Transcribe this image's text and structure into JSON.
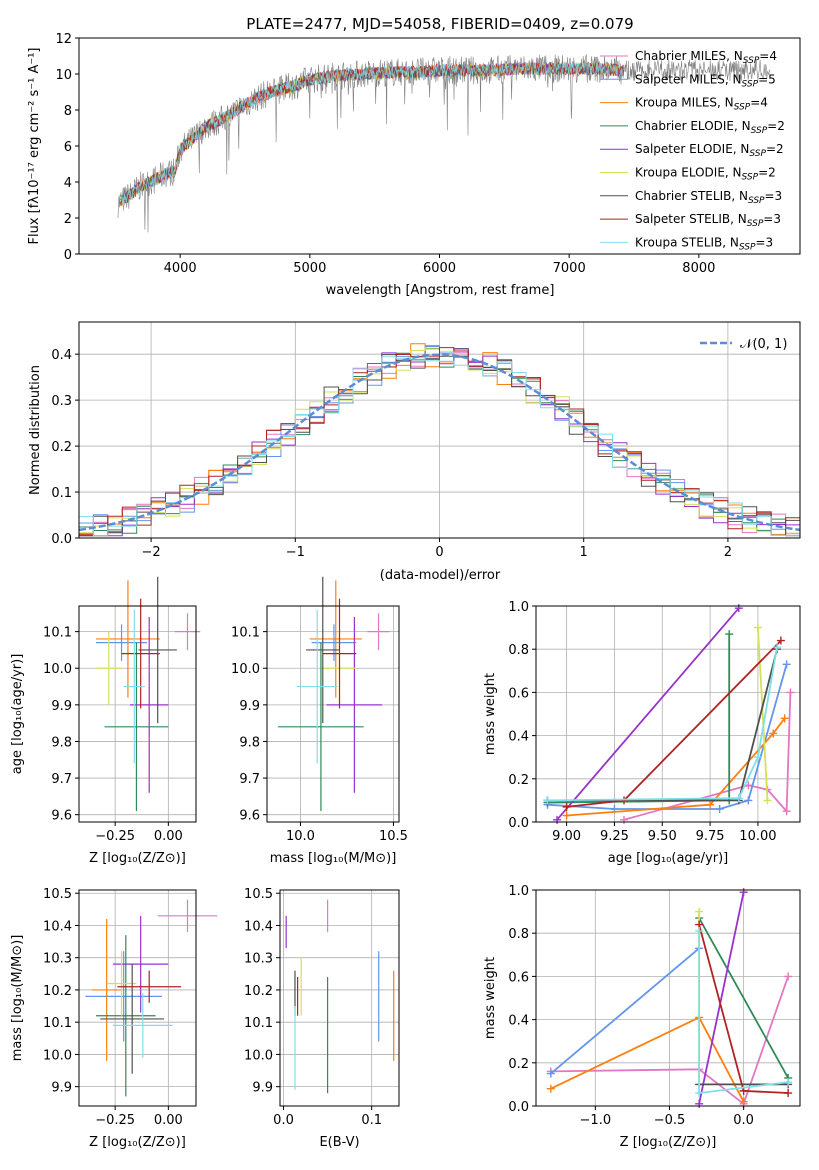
{
  "chart_data": [
    {
      "id": "spectrum",
      "type": "line",
      "title": "PLATE=2477, MJD=54058, FIBERID=0409, z=0.079",
      "xlabel": "wavelength [Angstrom, rest frame]",
      "ylabel": "Flux [fλ10⁻¹⁷ erg cm⁻² s⁻¹ A⁻¹]",
      "xlim": [
        3220,
        8780
      ],
      "ylim": [
        0,
        12
      ],
      "xticks": [
        4000,
        5000,
        6000,
        7000,
        8000
      ],
      "yticks": [
        0,
        2,
        4,
        6,
        8,
        10,
        12
      ],
      "grid": false,
      "legend_position": "right",
      "series": [
        {
          "name": "Chabrier MILES, N_SSP=4",
          "color": "#e377c2"
        },
        {
          "name": "Salpeter MILES, N_SSP=5",
          "color": "#6495ed"
        },
        {
          "name": "Kroupa MILES, N_SSP=4",
          "color": "#ff7f0e"
        },
        {
          "name": "Chabrier ELODIE, N_SSP=2",
          "color": "#2e8b57"
        },
        {
          "name": "Salpeter ELODIE, N_SSP=2",
          "color": "#9932cc"
        },
        {
          "name": "Kroupa ELODIE, N_SSP=2",
          "color": "#d4e157"
        },
        {
          "name": "Chabrier STELIB, N_SSP=3",
          "color": "#505050"
        },
        {
          "name": "Salpeter STELIB, N_SSP=3",
          "color": "#b22222"
        },
        {
          "name": "Kroupa STELIB, N_SSP=3",
          "color": "#80deea"
        }
      ],
      "continuum_points": [
        [
          3520,
          2.8
        ],
        [
          3620,
          3.3
        ],
        [
          3700,
          3.8
        ],
        [
          3800,
          4.1
        ],
        [
          3900,
          4.5
        ],
        [
          3960,
          4.6
        ],
        [
          4000,
          5.8
        ],
        [
          4100,
          6.4
        ],
        [
          4200,
          7.1
        ],
        [
          4300,
          7.4
        ],
        [
          4400,
          7.8
        ],
        [
          4500,
          8.3
        ],
        [
          4600,
          8.7
        ],
        [
          4700,
          9.0
        ],
        [
          4800,
          9.2
        ],
        [
          4900,
          9.4
        ],
        [
          5000,
          9.7
        ],
        [
          5200,
          9.9
        ],
        [
          5400,
          10.0
        ],
        [
          5600,
          10.1
        ],
        [
          5800,
          10.1
        ],
        [
          6000,
          10.2
        ],
        [
          6200,
          10.2
        ],
        [
          6400,
          10.2
        ],
        [
          6600,
          10.3
        ],
        [
          6800,
          10.3
        ],
        [
          7000,
          10.3
        ],
        [
          7200,
          10.3
        ],
        [
          7400,
          10.2
        ]
      ],
      "data_range": [
        3520,
        8550
      ]
    },
    {
      "id": "residuals",
      "type": "line",
      "xlabel": "(data-model)/error",
      "ylabel": "Normed distribution",
      "xlim": [
        -2.5,
        2.5
      ],
      "ylim": [
        0,
        0.47
      ],
      "xticks": [
        -2,
        -1,
        0,
        1,
        2
      ],
      "xtick_labels": [
        "−2",
        "−1",
        "0",
        "1",
        "2"
      ],
      "yticks": [
        0.0,
        0.1,
        0.2,
        0.3,
        0.4
      ],
      "ytick_labels": [
        "0.0",
        "0.1",
        "0.2",
        "0.3",
        "0.4"
      ],
      "grid": true,
      "legend_position": "top-right",
      "reference_label": "𝒩(0, 1)",
      "reference_color": "#5b8dd6",
      "bin_width": 0.1
    },
    {
      "id": "age-vs-Z",
      "type": "scatter",
      "xlabel": "Z [log₁₀(Z/Z⊙)]",
      "ylabel": "age  [log₁₀(age/yr)]",
      "xlim": [
        -0.42,
        0.13
      ],
      "ylim": [
        9.58,
        10.17
      ],
      "xticks": [
        -0.25,
        0.0
      ],
      "xtick_labels": [
        "−0.25",
        "0.00"
      ],
      "yticks": [
        9.6,
        9.7,
        9.8,
        9.9,
        10.0,
        10.1
      ],
      "ytick_labels": [
        "9.6",
        "9.7",
        "9.8",
        "9.9",
        "10.0",
        "10.1"
      ],
      "grid": true,
      "points": [
        {
          "x": 0.09,
          "y": 10.1,
          "xerr": 0.06,
          "yerr": 0.05,
          "color": "#e377c2"
        },
        {
          "x": -0.22,
          "y": 10.07,
          "xerr": 0.12,
          "yerr": 0.05,
          "color": "#6495ed"
        },
        {
          "x": -0.19,
          "y": 10.08,
          "xerr": 0.15,
          "yerr": 0.16,
          "color": "#ff7f0e"
        },
        {
          "x": -0.15,
          "y": 9.84,
          "xerr": 0.15,
          "yerr": 0.23,
          "color": "#2e8b57"
        },
        {
          "x": -0.09,
          "y": 9.9,
          "xerr": 0.09,
          "yerr": 0.24,
          "color": "#9932cc"
        },
        {
          "x": -0.28,
          "y": 10.0,
          "xerr": 0.06,
          "yerr": 0.1,
          "color": "#d4e157"
        },
        {
          "x": -0.05,
          "y": 10.05,
          "xerr": 0.09,
          "yerr": 0.2,
          "color": "#505050"
        },
        {
          "x": -0.13,
          "y": 10.04,
          "xerr": 0.09,
          "yerr": 0.15,
          "color": "#b22222"
        },
        {
          "x": -0.16,
          "y": 9.95,
          "xerr": 0.05,
          "yerr": 0.21,
          "color": "#80deea"
        }
      ]
    },
    {
      "id": "age-vs-mass",
      "type": "scatter",
      "xlabel": "mass [log₁₀(M/M⊙)]",
      "xlim": [
        9.82,
        10.53
      ],
      "ylim": [
        9.58,
        10.17
      ],
      "xticks": [
        10.0,
        10.5
      ],
      "xtick_labels": [
        "10.0",
        "10.5"
      ],
      "yticks": [
        9.6,
        9.7,
        9.8,
        9.9,
        10.0,
        10.1
      ],
      "ytick_labels": [
        "9.6",
        "9.7",
        "9.8",
        "9.9",
        "10.0",
        "10.1"
      ],
      "grid": true,
      "points": [
        {
          "x": 10.42,
          "y": 10.1,
          "xerr": 0.06,
          "yerr": 0.05,
          "color": "#e377c2"
        },
        {
          "x": 10.18,
          "y": 10.07,
          "xerr": 0.12,
          "yerr": 0.05,
          "color": "#6495ed"
        },
        {
          "x": 10.19,
          "y": 10.08,
          "xerr": 0.14,
          "yerr": 0.16,
          "color": "#ff7f0e"
        },
        {
          "x": 10.11,
          "y": 9.84,
          "xerr": 0.23,
          "yerr": 0.23,
          "color": "#2e8b57"
        },
        {
          "x": 10.29,
          "y": 9.9,
          "xerr": 0.15,
          "yerr": 0.24,
          "color": "#9932cc"
        },
        {
          "x": 10.21,
          "y": 10.0,
          "xerr": 0.09,
          "yerr": 0.1,
          "color": "#d4e157"
        },
        {
          "x": 10.12,
          "y": 10.05,
          "xerr": 0.09,
          "yerr": 0.2,
          "color": "#505050"
        },
        {
          "x": 10.21,
          "y": 10.04,
          "xerr": 0.09,
          "yerr": 0.15,
          "color": "#b22222"
        },
        {
          "x": 10.09,
          "y": 9.95,
          "xerr": 0.11,
          "yerr": 0.21,
          "color": "#80deea"
        }
      ]
    },
    {
      "id": "massweight-vs-age",
      "type": "line",
      "xlabel": "age  [log₁₀(age/yr)]",
      "ylabel": "mass weight",
      "xlim": [
        8.84,
        10.22
      ],
      "ylim": [
        0,
        1
      ],
      "xticks": [
        9.0,
        9.25,
        9.5,
        9.75,
        10.0
      ],
      "xtick_labels": [
        "9.00",
        "9.25",
        "9.50",
        "9.75",
        "10.00"
      ],
      "yticks": [
        0.0,
        0.2,
        0.4,
        0.6,
        0.8,
        1.0
      ],
      "ytick_labels": [
        "0.0",
        "0.2",
        "0.4",
        "0.6",
        "0.8",
        "1.0"
      ],
      "grid": true,
      "series": [
        {
          "color": "#e377c2",
          "points": [
            [
              9.3,
              0.01
            ],
            [
              9.95,
              0.17
            ],
            [
              10.05,
              0.15
            ],
            [
              10.15,
              0.05
            ],
            [
              10.17,
              0.6
            ]
          ]
        },
        {
          "color": "#6495ed",
          "points": [
            [
              8.9,
              0.08
            ],
            [
              9.25,
              0.06
            ],
            [
              9.8,
              0.06
            ],
            [
              9.95,
              0.1
            ],
            [
              10.15,
              0.73
            ]
          ]
        },
        {
          "color": "#ff7f0e",
          "points": [
            [
              9.0,
              0.03
            ],
            [
              9.75,
              0.08
            ],
            [
              10.08,
              0.41
            ],
            [
              10.14,
              0.48
            ]
          ]
        },
        {
          "color": "#2e8b57",
          "points": [
            [
              8.9,
              0.09
            ],
            [
              9.85,
              0.1
            ],
            [
              9.85,
              0.87
            ]
          ]
        },
        {
          "color": "#9932cc",
          "points": [
            [
              8.95,
              0.01
            ],
            [
              9.9,
              0.99
            ]
          ]
        },
        {
          "color": "#d4e157",
          "points": [
            [
              10.0,
              0.9
            ],
            [
              10.05,
              0.1
            ]
          ]
        },
        {
          "color": "#505050",
          "points": [
            [
              8.9,
              0.1
            ],
            [
              9.9,
              0.1
            ],
            [
              10.1,
              0.8
            ]
          ]
        },
        {
          "color": "#b22222",
          "points": [
            [
              9.0,
              0.07
            ],
            [
              9.3,
              0.1
            ],
            [
              10.12,
              0.84
            ]
          ]
        },
        {
          "color": "#80deea",
          "points": [
            [
              8.9,
              0.1
            ],
            [
              9.9,
              0.11
            ],
            [
              10.0,
              0.3
            ],
            [
              10.1,
              0.81
            ]
          ]
        }
      ]
    },
    {
      "id": "mass-vs-Z",
      "type": "scatter",
      "xlabel": "Z [log₁₀(Z/Z⊙)]",
      "ylabel": "mass [log₁₀(M/M⊙)]",
      "xlim": [
        -0.42,
        0.13
      ],
      "ylim": [
        9.84,
        10.51
      ],
      "xticks": [
        -0.25,
        0.0
      ],
      "xtick_labels": [
        "−0.25",
        "0.00"
      ],
      "yticks": [
        9.9,
        10.0,
        10.1,
        10.2,
        10.3,
        10.4,
        10.5
      ],
      "ytick_labels": [
        "9.9",
        "10.0",
        "10.1",
        "10.2",
        "10.3",
        "10.4",
        "10.5"
      ],
      "grid": true,
      "points": [
        {
          "x": 0.09,
          "y": 10.43,
          "xerr": 0.14,
          "yerr": 0.05,
          "color": "#e377c2"
        },
        {
          "x": -0.21,
          "y": 10.18,
          "xerr": 0.18,
          "yerr": 0.14,
          "color": "#6495ed"
        },
        {
          "x": -0.29,
          "y": 10.2,
          "xerr": 0.07,
          "yerr": 0.22,
          "color": "#ff7f0e"
        },
        {
          "x": -0.2,
          "y": 10.12,
          "xerr": 0.14,
          "yerr": 0.25,
          "color": "#2e8b57"
        },
        {
          "x": -0.13,
          "y": 10.28,
          "xerr": 0.13,
          "yerr": 0.15,
          "color": "#9932cc"
        },
        {
          "x": -0.22,
          "y": 10.22,
          "xerr": 0.07,
          "yerr": 0.1,
          "color": "#d4e157"
        },
        {
          "x": -0.17,
          "y": 10.11,
          "xerr": 0.15,
          "yerr": 0.17,
          "color": "#505050"
        },
        {
          "x": -0.09,
          "y": 10.21,
          "xerr": 0.15,
          "yerr": 0.05,
          "color": "#b22222"
        },
        {
          "x": -0.12,
          "y": 10.09,
          "xerr": 0.14,
          "yerr": 0.1,
          "color": "#80deea"
        }
      ]
    },
    {
      "id": "mass-vs-EBV",
      "type": "scatter",
      "xlabel": "E(B-V)",
      "xlim": [
        -0.004,
        0.131
      ],
      "ylim": [
        9.84,
        10.51
      ],
      "xticks": [
        0.0,
        0.1
      ],
      "xtick_labels": [
        "0.0",
        "0.1"
      ],
      "yticks": [
        9.9,
        10.0,
        10.1,
        10.2,
        10.3,
        10.4,
        10.5
      ],
      "ytick_labels": [
        "9.9",
        "10.0",
        "10.1",
        "10.2",
        "10.3",
        "10.4",
        "10.5"
      ],
      "grid": true,
      "points": [
        {
          "x": 0.05,
          "y": 10.43,
          "yerr": 0.05,
          "color": "#e377c2"
        },
        {
          "x": 0.108,
          "y": 10.18,
          "yerr": 0.14,
          "color": "#6495ed"
        },
        {
          "x": 0.125,
          "y": 10.12,
          "yerr": 0.14,
          "color": "#ff7f0e"
        },
        {
          "x": 0.05,
          "y": 10.06,
          "yerr": 0.18,
          "color": "#2e8b57"
        },
        {
          "x": 0.003,
          "y": 10.38,
          "yerr": 0.05,
          "color": "#9932cc"
        },
        {
          "x": 0.02,
          "y": 10.21,
          "yerr": 0.09,
          "color": "#d4e157"
        },
        {
          "x": 0.013,
          "y": 10.19,
          "yerr": 0.07,
          "color": "#505050"
        },
        {
          "x": 0.016,
          "y": 10.18,
          "yerr": 0.06,
          "color": "#b22222"
        },
        {
          "x": 0.013,
          "y": 10.02,
          "yerr": 0.13,
          "color": "#80deea"
        }
      ]
    },
    {
      "id": "massweight-vs-Z",
      "type": "line",
      "xlabel": "Z [log₁₀(Z/Z⊙)]",
      "ylabel": "mass weight",
      "xlim": [
        -1.4,
        0.38
      ],
      "ylim": [
        0,
        1
      ],
      "xticks": [
        -1.0,
        -0.5,
        0.0
      ],
      "xtick_labels": [
        "−1.0",
        "−0.5",
        "0.0"
      ],
      "yticks": [
        0.0,
        0.2,
        0.4,
        0.6,
        0.8,
        1.0
      ],
      "ytick_labels": [
        "0.0",
        "0.2",
        "0.4",
        "0.6",
        "0.8",
        "1.0"
      ],
      "grid": true,
      "series": [
        {
          "color": "#e377c2",
          "points": [
            [
              -1.3,
              0.16
            ],
            [
              -0.3,
              0.17
            ],
            [
              0.0,
              0.01
            ],
            [
              0.3,
              0.6
            ]
          ]
        },
        {
          "color": "#6495ed",
          "points": [
            [
              -0.3,
              0.73
            ],
            [
              -1.3,
              0.15
            ]
          ]
        },
        {
          "color": "#ff7f0e",
          "points": [
            [
              -1.3,
              0.08
            ],
            [
              -0.3,
              0.41
            ],
            [
              0.0,
              0.02
            ]
          ]
        },
        {
          "color": "#2e8b57",
          "points": [
            [
              -0.3,
              0.87
            ],
            [
              0.3,
              0.13
            ]
          ]
        },
        {
          "color": "#9932cc",
          "points": [
            [
              -0.3,
              0.01
            ],
            [
              0.0,
              0.99
            ]
          ]
        },
        {
          "color": "#d4e157",
          "points": [
            [
              -0.3,
              0.9
            ],
            [
              -0.3,
              0.1
            ]
          ]
        },
        {
          "color": "#505050",
          "points": [
            [
              -0.3,
              0.1
            ],
            [
              0.3,
              0.1
            ]
          ]
        },
        {
          "color": "#b22222",
          "points": [
            [
              -0.3,
              0.84
            ],
            [
              0.0,
              0.07
            ],
            [
              0.3,
              0.06
            ]
          ]
        },
        {
          "color": "#80deea",
          "points": [
            [
              -0.3,
              0.81
            ],
            [
              -0.3,
              0.06
            ],
            [
              0.3,
              0.11
            ]
          ]
        }
      ]
    }
  ]
}
